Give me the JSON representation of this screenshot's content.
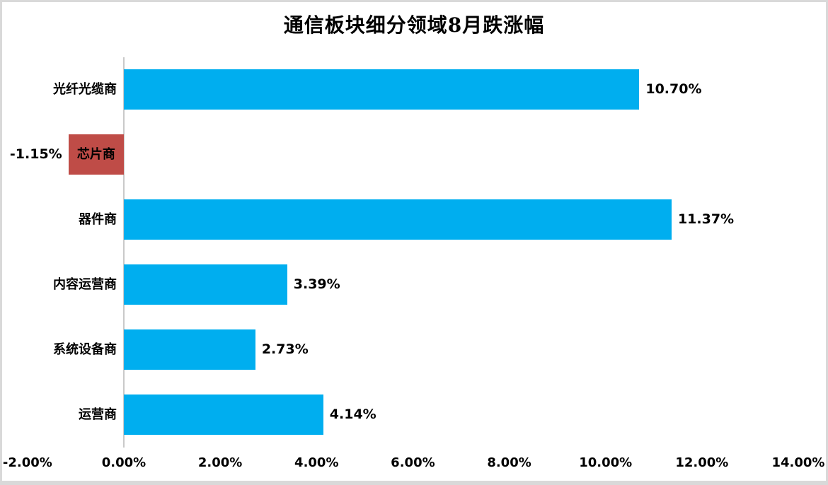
{
  "chart_data": {
    "type": "bar",
    "orientation": "horizontal",
    "title": "通信板块细分领域8月跌涨幅",
    "categories": [
      "光纤光缆商",
      "芯片商",
      "器件商",
      "内容运营商",
      "系统设备商",
      "运营商"
    ],
    "values": [
      10.7,
      -1.15,
      11.37,
      3.39,
      2.73,
      4.14
    ],
    "data_labels": [
      "10.70%",
      "-1.15%",
      "11.37%",
      "3.39%",
      "2.73%",
      "4.14%"
    ],
    "x_ticks": {
      "values": [
        -2,
        0,
        2,
        4,
        6,
        8,
        10,
        12,
        14
      ],
      "labels": [
        "-2.00%",
        "0.00%",
        "2.00%",
        "4.00%",
        "6.00%",
        "8.00%",
        "10.00%",
        "12.00%",
        "14.00%"
      ]
    },
    "xlim": [
      -2,
      14
    ],
    "grid": "off",
    "legend": "none",
    "colors": {
      "positive_bar": "#00aeef",
      "negative_bar": "#bf4c47",
      "axis_line": "#c9c9c9",
      "text": "#000000",
      "frame_border": "#d9d9d9"
    }
  }
}
